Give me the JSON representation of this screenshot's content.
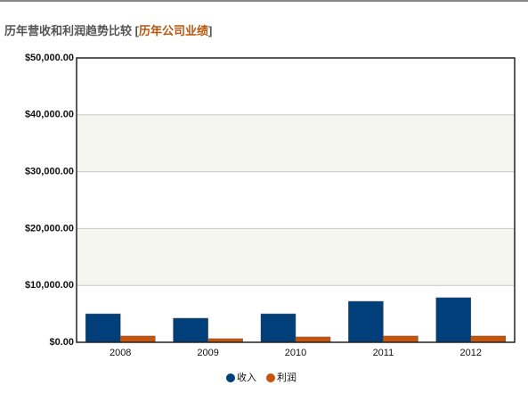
{
  "chart_data": {
    "type": "bar",
    "title": "历年营收和利润趋势比较",
    "title_link": {
      "open": "[",
      "text": "历年公司业绩",
      "close": "]"
    },
    "categories": [
      "2008",
      "2009",
      "2010",
      "2011",
      "2012"
    ],
    "series": [
      {
        "name": "收入",
        "color": "#003f7a",
        "values": [
          5000,
          4230,
          5000,
          7200,
          7840
        ]
      },
      {
        "name": "利润",
        "color": "#c8540a",
        "values": [
          1100,
          630,
          940,
          1100,
          1100
        ]
      }
    ],
    "ylim": [
      0,
      50000
    ],
    "yticks": [
      {
        "value": 0,
        "label": "$0.00"
      },
      {
        "value": 10000,
        "label": "$10,000.00"
      },
      {
        "value": 20000,
        "label": "$20,000.00"
      },
      {
        "value": 30000,
        "label": "$30,000.00"
      },
      {
        "value": 40000,
        "label": "$40,000.00"
      },
      {
        "value": 50000,
        "label": "$50,000.00"
      }
    ],
    "grid": true,
    "legend": "bottom"
  }
}
